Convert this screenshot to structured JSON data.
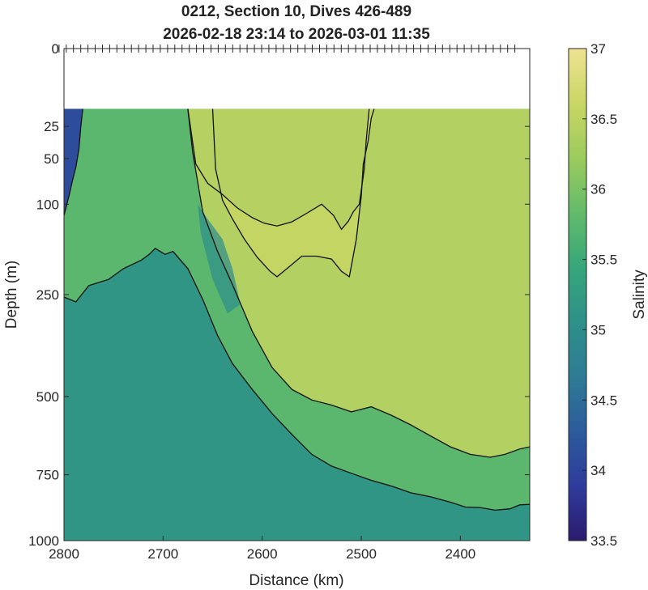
{
  "chart_data": {
    "type": "heatmap",
    "title_lines": [
      "0212, Section 10, Dives 426-489",
      "2026-02-18 23:14 to 2026-03-01 11:35"
    ],
    "xlabel": "Distance (km)",
    "ylabel": "Depth (m)",
    "colorbar_label": "Salinity",
    "xlim": [
      2800,
      2330
    ],
    "x_ticks": [
      2800,
      2700,
      2600,
      2500,
      2400
    ],
    "y_scale": "sqrt",
    "ylim": [
      0,
      1000
    ],
    "y_ticks": [
      0,
      25,
      50,
      100,
      250,
      500,
      750,
      1000
    ],
    "data_top_depth": 15,
    "clim": [
      33.5,
      37
    ],
    "colorbar_ticks": [
      33.5,
      34,
      34.5,
      35,
      35.5,
      36,
      36.5,
      37
    ],
    "colormap": [
      "#2b1b6e",
      "#2e3c9c",
      "#2c5b9c",
      "#2f7b95",
      "#2e9089",
      "#37a67a",
      "#63bb6a",
      "#9ccb5e",
      "#c9d665",
      "#efe393"
    ],
    "contours": [
      {
        "name": "west-shallow",
        "level": 35.0,
        "x": [
          2800,
          2795,
          2791,
          2788,
          2785,
          2783,
          2781
        ],
        "y": [
          115,
          90,
          70,
          58,
          42,
          25,
          15
        ]
      },
      {
        "name": "main-deep",
        "level": 35.5,
        "x": [
          2800,
          2788,
          2775,
          2755,
          2740,
          2722,
          2714,
          2708,
          2698,
          2690,
          2675,
          2660,
          2645,
          2630,
          2610,
          2590,
          2570,
          2550,
          2530,
          2510,
          2490,
          2470,
          2450,
          2430,
          2410,
          2395,
          2380,
          2365,
          2350,
          2340,
          2330
        ],
        "y": [
          255,
          265,
          232,
          220,
          200,
          185,
          175,
          165,
          175,
          170,
          200,
          260,
          340,
          410,
          480,
          550,
          615,
          680,
          720,
          745,
          770,
          790,
          815,
          830,
          850,
          868,
          870,
          880,
          875,
          860,
          858
        ]
      },
      {
        "name": "main-mid",
        "level": 36.0,
        "x": [
          2675,
          2670,
          2660,
          2645,
          2630,
          2610,
          2590,
          2570,
          2550,
          2530,
          2510,
          2490,
          2470,
          2450,
          2430,
          2410,
          2390,
          2370,
          2355,
          2340,
          2330
        ],
        "y": [
          15,
          45,
          110,
          170,
          230,
          330,
          420,
          480,
          510,
          525,
          545,
          530,
          555,
          585,
          620,
          655,
          680,
          690,
          680,
          662,
          655
        ]
      },
      {
        "name": "core-outer",
        "level": 36.5,
        "x": [
          2650,
          2647,
          2640,
          2630,
          2618,
          2605,
          2592,
          2585,
          2575,
          2560,
          2545,
          2530,
          2520,
          2512,
          2505,
          2500,
          2498,
          2493,
          2490,
          2487
        ],
        "y": [
          15,
          60,
          95,
          120,
          150,
          180,
          205,
          215,
          200,
          178,
          178,
          183,
          205,
          215,
          150,
          90,
          55,
          35,
          20,
          15
        ]
      },
      {
        "name": "core-inner",
        "level": 36.6,
        "x": [
          2675,
          2667,
          2655,
          2640,
          2625,
          2610,
          2598,
          2585,
          2570,
          2555,
          2540,
          2528,
          2520,
          2513,
          2508,
          2502,
          2497,
          2495,
          2492
        ],
        "y": [
          15,
          55,
          75,
          88,
          105,
          118,
          126,
          130,
          124,
          112,
          100,
          115,
          135,
          123,
          110,
          100,
          60,
          35,
          15
        ]
      }
    ]
  }
}
